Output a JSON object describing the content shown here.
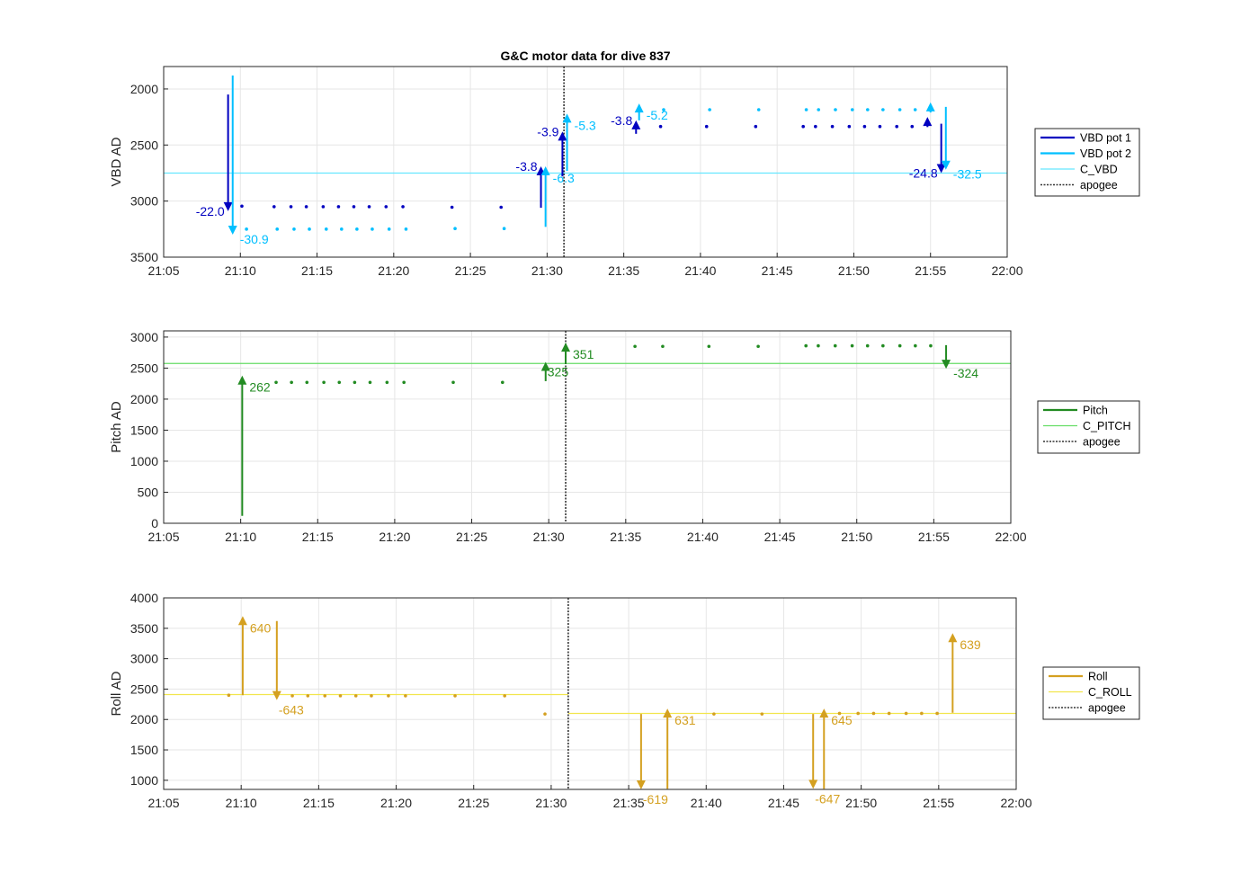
{
  "chart_data": [
    {
      "type": "scatter",
      "title": "G&C motor data for dive 837",
      "ylabel": "VBD AD",
      "xlabel": "",
      "xlim": [
        "21:05",
        "22:00"
      ],
      "ylim": [
        3500,
        1800
      ],
      "y_reversed": true,
      "yticks": [
        2000,
        2500,
        3000,
        3500
      ],
      "xticks": [
        "21:05",
        "21:10",
        "21:15",
        "21:20",
        "21:25",
        "21:30",
        "21:35",
        "21:40",
        "21:45",
        "21:50",
        "21:55",
        "22:00"
      ],
      "grid": true,
      "legend_placement": "outside-right",
      "legend": [
        {
          "label": "VBD pot 1",
          "style": "line",
          "color": "#0000c0"
        },
        {
          "label": "VBD pot 2",
          "style": "line",
          "color": "#00bfff"
        },
        {
          "label": "C_VBD",
          "style": "thin",
          "color": "#66e6ff"
        },
        {
          "label": "apogee",
          "style": "dotted",
          "color": "#333333"
        }
      ],
      "reference_line": {
        "y": 2750,
        "color": "#66e6ff"
      },
      "apogee_x": "21:31.1",
      "series": [
        {
          "name": "VBD pot 1",
          "color": "#0000c0",
          "x": [
            "21:10.1",
            "21:12.2",
            "21:13.3",
            "21:14.3",
            "21:15.4",
            "21:16.4",
            "21:17.4",
            "21:18.4",
            "21:19.5",
            "21:20.6",
            "21:23.8",
            "21:27.0",
            "21:37.4",
            "21:40.4",
            "21:43.6",
            "21:46.7",
            "21:47.5",
            "21:48.6",
            "21:49.7",
            "21:50.7",
            "21:51.7",
            "21:52.8",
            "21:53.8"
          ],
          "y": [
            3045,
            3050,
            3050,
            3050,
            3050,
            3050,
            3050,
            3050,
            3050,
            3050,
            3055,
            3055,
            2335,
            2335,
            2335,
            2335,
            2335,
            2335,
            2335,
            2335,
            2335,
            2335,
            2335
          ]
        },
        {
          "name": "VBD pot 2",
          "color": "#00bfff",
          "x": [
            "21:10.4",
            "21:12.4",
            "21:13.5",
            "21:14.5",
            "21:15.6",
            "21:16.6",
            "21:17.6",
            "21:18.6",
            "21:19.7",
            "21:20.8",
            "21:24.0",
            "21:27.2",
            "21:37.6",
            "21:40.6",
            "21:43.8",
            "21:46.9",
            "21:47.7",
            "21:48.8",
            "21:49.9",
            "21:50.9",
            "21:51.9",
            "21:53.0",
            "21:54.0"
          ],
          "y": [
            3250,
            3250,
            3250,
            3250,
            3250,
            3250,
            3250,
            3250,
            3250,
            3250,
            3245,
            3245,
            2185,
            2185,
            2185,
            2185,
            2185,
            2185,
            2185,
            2185,
            2185,
            2185,
            2185
          ]
        }
      ],
      "motor_moves": [
        {
          "series": "VBD pot 1",
          "x": "21:09.2",
          "y_start": 2050,
          "y_end": 3090,
          "label": "-22.0",
          "label_side": "left"
        },
        {
          "series": "VBD pot 2",
          "x": "21:09.5",
          "y_start": 1880,
          "y_end": 3300,
          "label": "-30.9",
          "label_side": "right"
        },
        {
          "series": "VBD pot 1",
          "x": "21:29.6",
          "y_start": 3060,
          "y_end": 2690,
          "label": "-3.8",
          "label_side": "left"
        },
        {
          "series": "VBD pot 2",
          "x": "21:29.9",
          "y_start": 3230,
          "y_end": 2690,
          "label": "-6.3",
          "label_side": "right"
        },
        {
          "series": "VBD pot 1",
          "x": "21:31.0",
          "y_start": 2780,
          "y_end": 2380,
          "label": "-3.9",
          "label_side": "left"
        },
        {
          "series": "VBD pot 2",
          "x": "21:31.3",
          "y_start": 2730,
          "y_end": 2220,
          "label": "-5.3",
          "label_side": "right"
        },
        {
          "series": "VBD pot 1",
          "x": "21:35.8",
          "y_start": 2400,
          "y_end": 2280,
          "label": "-3.8",
          "label_side": "left"
        },
        {
          "series": "VBD pot 2",
          "x": "21:36.0",
          "y_start": 2280,
          "y_end": 2130,
          "label": "-5.2",
          "label_side": "right"
        },
        {
          "series": "VBD pot 1",
          "x": "21:54.8",
          "y_start": 2340,
          "y_end": 2250,
          "label": "",
          "label_side": "left"
        },
        {
          "series": "VBD pot 2",
          "x": "21:55.0",
          "y_start": 2210,
          "y_end": 2120,
          "label": "",
          "label_side": "right"
        },
        {
          "series": "VBD pot 1",
          "x": "21:55.7",
          "y_start": 2310,
          "y_end": 2750,
          "label": "-24.8",
          "label_side": "left"
        },
        {
          "series": "VBD pot 2",
          "x": "21:56.0",
          "y_start": 2160,
          "y_end": 2720,
          "label": "-32.5",
          "label_side": "right"
        }
      ]
    },
    {
      "type": "scatter",
      "title": "",
      "ylabel": "Pitch AD",
      "xlabel": "",
      "xlim": [
        "21:05",
        "22:00"
      ],
      "ylim": [
        0,
        3100
      ],
      "y_reversed": false,
      "yticks": [
        0,
        500,
        1000,
        1500,
        2000,
        2500,
        3000
      ],
      "xticks": [
        "21:05",
        "21:10",
        "21:15",
        "21:20",
        "21:25",
        "21:30",
        "21:35",
        "21:40",
        "21:45",
        "21:50",
        "21:55",
        "22:00"
      ],
      "grid": true,
      "legend_placement": "outside-right",
      "legend": [
        {
          "label": "Pitch",
          "style": "line",
          "color": "#228b22"
        },
        {
          "label": "C_PITCH",
          "style": "thin",
          "color": "#66dd66"
        },
        {
          "label": "apogee",
          "style": "dotted",
          "color": "#333333"
        }
      ],
      "reference_line": {
        "y": 2575,
        "color": "#66dd66"
      },
      "apogee_x": "21:31.1",
      "series": [
        {
          "name": "Pitch",
          "color": "#228b22",
          "x": [
            "21:12.3",
            "21:13.3",
            "21:14.3",
            "21:15.4",
            "21:16.4",
            "21:17.4",
            "21:18.4",
            "21:19.5",
            "21:20.6",
            "21:23.8",
            "21:27.0",
            "21:35.6",
            "21:37.4",
            "21:40.4",
            "21:43.6",
            "21:46.7",
            "21:47.5",
            "21:48.6",
            "21:49.7",
            "21:50.7",
            "21:51.7",
            "21:52.8",
            "21:53.8",
            "21:54.8"
          ],
          "y": [
            2270,
            2270,
            2270,
            2270,
            2270,
            2270,
            2270,
            2270,
            2270,
            2270,
            2270,
            2850,
            2850,
            2850,
            2850,
            2860,
            2860,
            2860,
            2860,
            2860,
            2860,
            2860,
            2860,
            2860
          ]
        }
      ],
      "motor_moves": [
        {
          "series": "Pitch",
          "x": "21:10.1",
          "y_start": 120,
          "y_end": 2380,
          "label": "262",
          "label_side": "right"
        },
        {
          "series": "Pitch",
          "x": "21:29.8",
          "y_start": 2290,
          "y_end": 2600,
          "label": "325",
          "label_side": "right-below"
        },
        {
          "series": "Pitch",
          "x": "21:31.1",
          "y_start": 2570,
          "y_end": 2910,
          "label": "351",
          "label_side": "right"
        },
        {
          "series": "Pitch",
          "x": "21:55.8",
          "y_start": 2870,
          "y_end": 2490,
          "label": "-324",
          "label_side": "right"
        }
      ]
    },
    {
      "type": "scatter",
      "title": "",
      "ylabel": "Roll AD",
      "xlabel": "",
      "xlim": [
        "21:05",
        "22:00"
      ],
      "ylim": [
        850,
        4000
      ],
      "y_reversed": false,
      "yticks": [
        1000,
        1500,
        2000,
        2500,
        3000,
        3500,
        4000
      ],
      "xticks": [
        "21:05",
        "21:10",
        "21:15",
        "21:20",
        "21:25",
        "21:30",
        "21:35",
        "21:40",
        "21:45",
        "21:50",
        "21:55",
        "22:00"
      ],
      "grid": true,
      "legend_placement": "outside-right",
      "legend": [
        {
          "label": "Roll",
          "style": "line",
          "color": "#d4a020"
        },
        {
          "label": "C_ROLL",
          "style": "thin",
          "color": "#f2e64d"
        },
        {
          "label": "apogee",
          "style": "dotted",
          "color": "#333333"
        }
      ],
      "reference_segments": [
        {
          "x_start": "21:05",
          "x_end": "21:31.1",
          "y": 2410
        },
        {
          "x_start": "21:31.1",
          "x_end": "22:00",
          "y": 2100
        }
      ],
      "apogee_x": "21:31.1",
      "series": [
        {
          "name": "Roll",
          "color": "#d4a020",
          "x": [
            "21:09.2",
            "21:13.3",
            "21:14.3",
            "21:15.4",
            "21:16.4",
            "21:17.4",
            "21:18.4",
            "21:19.5",
            "21:20.6",
            "21:23.8",
            "21:27.0",
            "21:29.6",
            "21:40.5",
            "21:43.6",
            "21:48.6",
            "21:49.8",
            "21:50.8",
            "21:51.8",
            "21:52.9",
            "21:53.9",
            "21:54.9"
          ],
          "y": [
            2400,
            2390,
            2390,
            2390,
            2390,
            2390,
            2390,
            2390,
            2390,
            2390,
            2390,
            2090,
            2090,
            2090,
            2100,
            2100,
            2100,
            2100,
            2100,
            2100,
            2100
          ]
        }
      ],
      "motor_moves": [
        {
          "series": "Roll",
          "x": "21:10.1",
          "y_start": 2400,
          "y_end": 3700,
          "label": "640",
          "label_side": "right"
        },
        {
          "series": "Roll",
          "x": "21:12.3",
          "y_start": 3620,
          "y_end": 2320,
          "label": "-643",
          "label_side": "right-below"
        },
        {
          "series": "Roll",
          "x": "21:35.8",
          "y_start": 2090,
          "y_end": 850,
          "label": "-619",
          "label_side": "right-below"
        },
        {
          "series": "Roll",
          "x": "21:37.5",
          "y_start": 860,
          "y_end": 2180,
          "label": "631",
          "label_side": "right"
        },
        {
          "series": "Roll",
          "x": "21:46.9",
          "y_start": 2090,
          "y_end": 860,
          "label": "-647",
          "label_side": "right-below"
        },
        {
          "series": "Roll",
          "x": "21:47.6",
          "y_start": 860,
          "y_end": 2180,
          "label": "645",
          "label_side": "right"
        },
        {
          "series": "Roll",
          "x": "21:55.9",
          "y_start": 2110,
          "y_end": 3420,
          "label": "639",
          "label_side": "right"
        }
      ]
    }
  ]
}
